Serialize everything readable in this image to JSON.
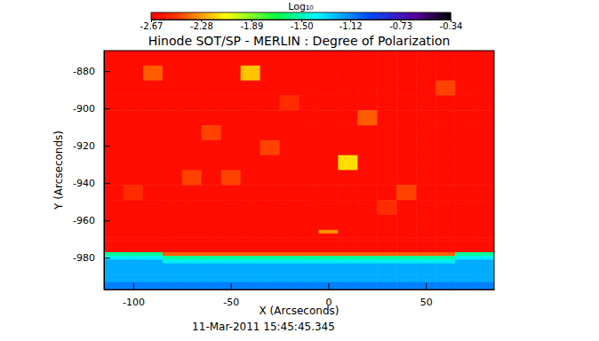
{
  "chart_data": {
    "type": "heatmap",
    "title": "Hinode SOT/SP - MERLIN : Degree of Polarization",
    "xlabel": "X (Arcseconds)",
    "ylabel": "Y (Arcseconds)",
    "annotations": [
      "11-Mar-2011 15:45:45.345"
    ],
    "xlim": [
      -115,
      85
    ],
    "ylim": [
      -997,
      -869
    ],
    "xticks": [
      -100,
      -50,
      0,
      50
    ],
    "yticks": [
      -980,
      -960,
      -940,
      -920,
      -900,
      -880
    ],
    "x_bins": [
      -115,
      -105,
      -95,
      -85,
      -75,
      -65,
      -55,
      -45,
      -35,
      -25,
      -15,
      -5,
      5,
      15,
      25,
      35,
      45,
      55,
      65,
      75,
      85
    ],
    "y_bins": [
      -869,
      -877,
      -885,
      -893,
      -901,
      -909,
      -917,
      -925,
      -933,
      -941,
      -949,
      -957,
      -965,
      -967,
      -969,
      -971,
      -973,
      -975,
      -977,
      -979,
      -981,
      -983,
      -985,
      -987,
      -989,
      -991,
      -993,
      -995,
      -997
    ],
    "z": [
      [
        -2.62,
        -2.62,
        -2.62,
        -2.62,
        -2.62,
        -2.62,
        -2.62,
        -2.62,
        -2.62,
        -2.62,
        -2.62,
        -2.62,
        -2.62,
        -2.62,
        -2.62,
        -2.62,
        -2.62,
        -2.62,
        -2.62,
        -2.62
      ],
      [
        -2.62,
        -2.62,
        -2.4,
        -2.62,
        -2.62,
        -2.62,
        -2.62,
        -2.2,
        -2.62,
        -2.62,
        -2.62,
        -2.62,
        -2.62,
        -2.62,
        -2.62,
        -2.62,
        -2.62,
        -2.62,
        -2.62,
        -2.62
      ],
      [
        -2.62,
        -2.62,
        -2.62,
        -2.62,
        -2.62,
        -2.62,
        -2.62,
        -2.62,
        -2.62,
        -2.62,
        -2.62,
        -2.62,
        -2.62,
        -2.62,
        -2.62,
        -2.62,
        -2.62,
        -2.45,
        -2.62,
        -2.62
      ],
      [
        -2.62,
        -2.62,
        -2.62,
        -2.62,
        -2.62,
        -2.62,
        -2.62,
        -2.62,
        -2.62,
        -2.5,
        -2.62,
        -2.62,
        -2.62,
        -2.62,
        -2.62,
        -2.62,
        -2.62,
        -2.62,
        -2.62,
        -2.62
      ],
      [
        -2.62,
        -2.62,
        -2.62,
        -2.62,
        -2.62,
        -2.62,
        -2.62,
        -2.62,
        -2.62,
        -2.62,
        -2.62,
        -2.62,
        -2.62,
        -2.4,
        -2.62,
        -2.62,
        -2.62,
        -2.62,
        -2.62,
        -2.62
      ],
      [
        -2.62,
        -2.62,
        -2.62,
        -2.62,
        -2.62,
        -2.45,
        -2.62,
        -2.62,
        -2.62,
        -2.62,
        -2.62,
        -2.62,
        -2.62,
        -2.62,
        -2.62,
        -2.62,
        -2.62,
        -2.62,
        -2.62,
        -2.62
      ],
      [
        -2.62,
        -2.62,
        -2.62,
        -2.62,
        -2.62,
        -2.62,
        -2.62,
        -2.62,
        -2.45,
        -2.62,
        -2.62,
        -2.62,
        -2.62,
        -2.62,
        -2.62,
        -2.62,
        -2.62,
        -2.62,
        -2.62,
        -2.62
      ],
      [
        -2.62,
        -2.62,
        -2.62,
        -2.62,
        -2.62,
        -2.62,
        -2.62,
        -2.62,
        -2.62,
        -2.62,
        -2.62,
        -2.62,
        -2.15,
        -2.62,
        -2.62,
        -2.62,
        -2.62,
        -2.62,
        -2.62,
        -2.62
      ],
      [
        -2.62,
        -2.62,
        -2.62,
        -2.62,
        -2.45,
        -2.62,
        -2.45,
        -2.62,
        -2.62,
        -2.62,
        -2.62,
        -2.62,
        -2.62,
        -2.62,
        -2.62,
        -2.62,
        -2.62,
        -2.62,
        -2.62,
        -2.62
      ],
      [
        -2.62,
        -2.5,
        -2.62,
        -2.62,
        -2.62,
        -2.62,
        -2.62,
        -2.62,
        -2.62,
        -2.62,
        -2.62,
        -2.62,
        -2.62,
        -2.62,
        -2.62,
        -2.45,
        -2.62,
        -2.62,
        -2.62,
        -2.62
      ],
      [
        -2.62,
        -2.62,
        -2.62,
        -2.62,
        -2.62,
        -2.62,
        -2.62,
        -2.62,
        -2.62,
        -2.62,
        -2.62,
        -2.62,
        -2.62,
        -2.62,
        -2.5,
        -2.62,
        -2.62,
        -2.62,
        -2.62,
        -2.62
      ],
      [
        -2.62,
        -2.62,
        -2.62,
        -2.62,
        -2.62,
        -2.62,
        -2.62,
        -2.62,
        -2.62,
        -2.62,
        -2.62,
        -2.62,
        -2.62,
        -2.62,
        -2.62,
        -2.62,
        -2.62,
        -2.62,
        -2.62,
        -2.62
      ],
      [
        -2.62,
        -2.62,
        -2.62,
        -2.62,
        -2.62,
        -2.62,
        -2.62,
        -2.62,
        -2.62,
        -2.62,
        -2.62,
        -2.3,
        -2.62,
        -2.62,
        -2.62,
        -2.62,
        -2.62,
        -2.62,
        -2.62,
        -2.62
      ],
      [
        -2.62,
        -2.62,
        -2.62,
        -2.62,
        -2.62,
        -2.62,
        -2.62,
        -2.62,
        -2.62,
        -2.62,
        -2.62,
        -2.62,
        -2.62,
        -2.62,
        -2.62,
        -2.62,
        -2.62,
        -2.62,
        -2.62,
        -2.62
      ],
      [
        -2.62,
        -2.62,
        -2.62,
        -2.62,
        -2.62,
        -2.62,
        -2.62,
        -2.62,
        -2.62,
        -2.62,
        -2.62,
        -2.62,
        -2.62,
        -2.62,
        -2.62,
        -2.62,
        -2.62,
        -2.62,
        -2.62,
        -2.62
      ],
      [
        -2.62,
        -2.62,
        -2.62,
        -2.62,
        -2.62,
        -2.62,
        -2.62,
        -2.62,
        -2.62,
        -2.62,
        -2.62,
        -2.62,
        -2.62,
        -2.62,
        -2.62,
        -2.62,
        -2.62,
        -2.62,
        -2.62,
        -2.62
      ],
      [
        -2.62,
        -2.62,
        -2.62,
        -2.62,
        -2.62,
        -2.62,
        -2.62,
        -2.62,
        -2.62,
        -2.62,
        -2.62,
        -2.62,
        -2.62,
        -2.62,
        -2.62,
        -2.62,
        -2.62,
        -2.62,
        -2.62,
        -2.62
      ],
      [
        -2.62,
        -2.62,
        -2.62,
        -2.62,
        -2.62,
        -2.62,
        -2.62,
        -2.62,
        -2.62,
        -2.62,
        -2.62,
        -2.62,
        -2.62,
        -2.62,
        -2.62,
        -2.62,
        -2.62,
        -2.62,
        -2.62,
        -2.62
      ],
      [
        -1.55,
        -1.55,
        -1.55,
        -2.4,
        -2.4,
        -2.4,
        -2.4,
        -2.4,
        -2.4,
        -2.4,
        -2.4,
        -2.4,
        -2.4,
        -2.4,
        -2.4,
        -2.4,
        -2.4,
        -2.4,
        -1.55,
        -1.55
      ],
      [
        -1.35,
        -1.35,
        -1.35,
        -1.55,
        -1.55,
        -1.55,
        -1.55,
        -1.55,
        -1.55,
        -1.55,
        -1.55,
        -1.55,
        -1.55,
        -1.55,
        -1.55,
        -1.55,
        -1.55,
        -1.55,
        -1.35,
        -1.35
      ],
      [
        -1.2,
        -1.2,
        -1.2,
        -1.35,
        -1.35,
        -1.35,
        -1.35,
        -1.35,
        -1.35,
        -1.35,
        -1.35,
        -1.35,
        -1.35,
        -1.35,
        -1.35,
        -1.35,
        -1.35,
        -1.35,
        -1.2,
        -1.2
      ],
      [
        -1.2,
        -1.2,
        -1.2,
        -1.2,
        -1.2,
        -1.2,
        -1.2,
        -1.2,
        -1.2,
        -1.2,
        -1.2,
        -1.2,
        -1.2,
        -1.2,
        -1.2,
        -1.2,
        -1.2,
        -1.2,
        -1.2,
        -1.2
      ],
      [
        -1.2,
        -1.2,
        -1.2,
        -1.2,
        -1.2,
        -1.2,
        -1.2,
        -1.2,
        -1.2,
        -1.2,
        -1.2,
        -1.2,
        -1.2,
        -1.2,
        -1.2,
        -1.2,
        -1.2,
        -1.2,
        -1.2,
        -1.2
      ],
      [
        -1.2,
        -1.2,
        -1.2,
        -1.2,
        -1.2,
        -1.2,
        -1.2,
        -1.2,
        -1.2,
        -1.2,
        -1.2,
        -1.2,
        -1.2,
        -1.2,
        -1.2,
        -1.2,
        -1.2,
        -1.2,
        -1.2,
        -1.2
      ],
      [
        -1.2,
        -1.2,
        -1.2,
        -1.2,
        -1.2,
        -1.2,
        -1.2,
        -1.2,
        -1.2,
        -1.2,
        -1.2,
        -1.2,
        -1.2,
        -1.2,
        -1.2,
        -1.2,
        -1.2,
        -1.2,
        -1.2,
        -1.2
      ],
      [
        -1.2,
        -1.2,
        -1.2,
        -1.2,
        -1.2,
        -1.2,
        -1.2,
        -1.2,
        -1.2,
        -1.2,
        -1.2,
        -1.2,
        -1.2,
        -1.2,
        -1.2,
        -1.2,
        -1.2,
        -1.2,
        -1.2,
        -1.2
      ],
      [
        -1.1,
        -1.1,
        -1.1,
        -1.1,
        -1.1,
        -1.1,
        -1.1,
        -1.1,
        -1.1,
        -1.1,
        -1.1,
        -1.1,
        -1.1,
        -1.1,
        -1.1,
        -1.1,
        -1.1,
        -1.1,
        -1.1,
        -1.1
      ],
      [
        -1.1,
        -1.1,
        -1.1,
        -1.1,
        -1.1,
        -1.1,
        -1.1,
        -1.1,
        -1.1,
        -1.1,
        -1.1,
        -1.1,
        -1.1,
        -1.1,
        -1.1,
        -1.1,
        -1.1,
        -1.1,
        -1.1,
        -1.1
      ]
    ],
    "colorbar": {
      "label": "Log₁₀",
      "range": [
        -2.67,
        -0.34
      ],
      "ticks": [
        -2.67,
        -2.28,
        -1.89,
        {
          "value": -1.5,
          "label": "-1.50"
        },
        -1.12,
        -0.73,
        -0.34
      ]
    }
  }
}
